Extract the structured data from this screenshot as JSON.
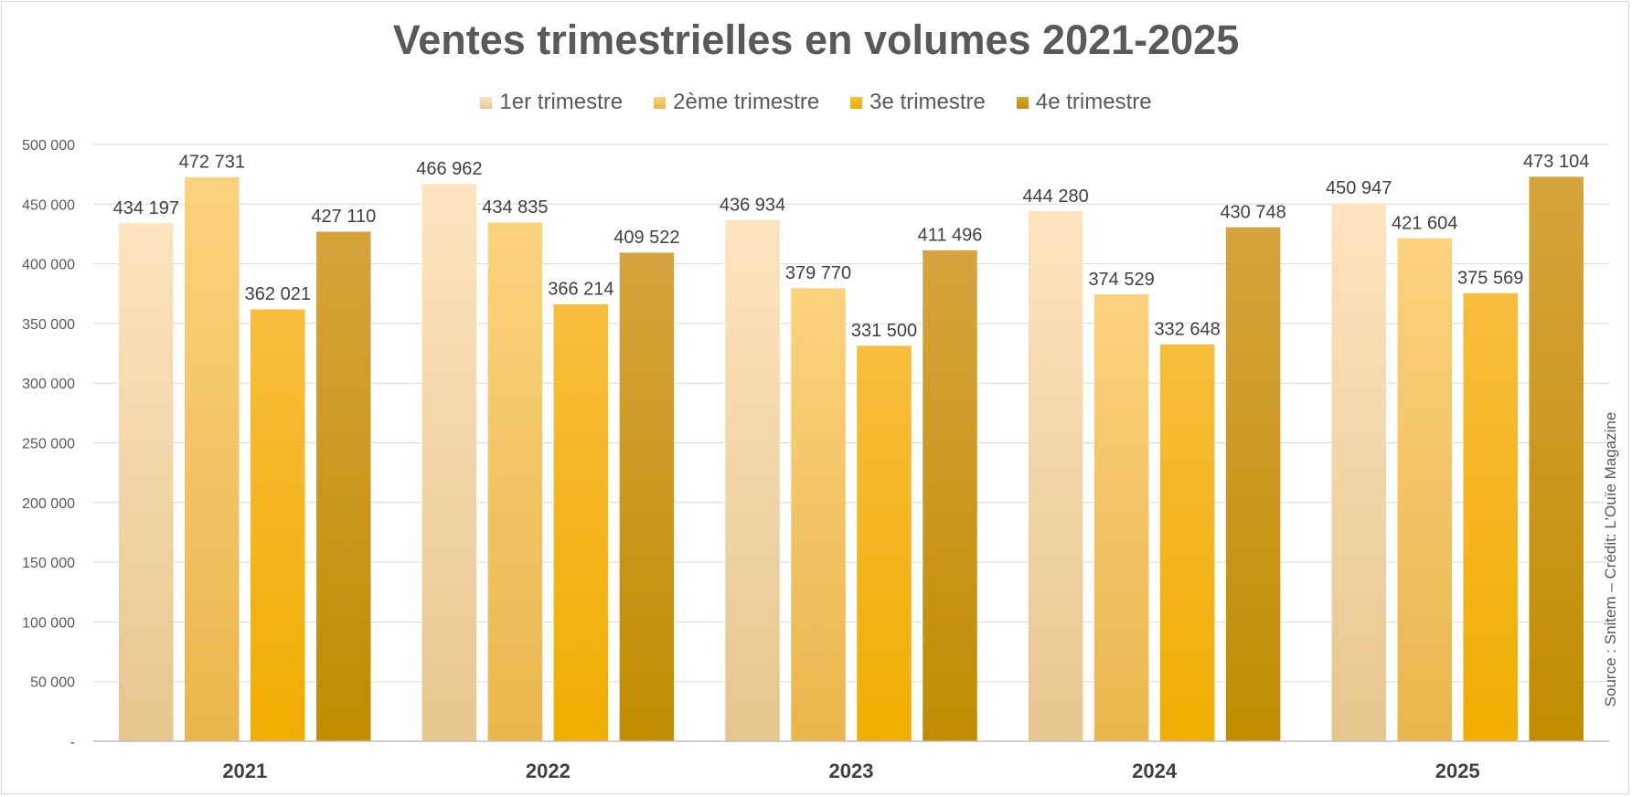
{
  "chart_data": {
    "type": "bar",
    "title": "Ventes trimestrielles en volumes 2021-2025",
    "categories": [
      "2021",
      "2022",
      "2023",
      "2024",
      "2025"
    ],
    "series": [
      {
        "name": "1er trimestre",
        "values": [
          434197,
          466962,
          436934,
          444280,
          450947
        ],
        "labels": [
          "434 197",
          "466 962",
          "436 934",
          "444 280",
          "450 947"
        ],
        "color_top": "#fde4bf",
        "color_bottom": "#e7c58e"
      },
      {
        "name": "2ème trimestre",
        "values": [
          472731,
          434835,
          379770,
          374529,
          421604
        ],
        "labels": [
          "472 731",
          "434 835",
          "379 770",
          "374 529",
          "421 604"
        ],
        "color_top": "#fdd27e",
        "color_bottom": "#e8b64c"
      },
      {
        "name": "3e trimestre",
        "values": [
          362021,
          366214,
          331500,
          332648,
          375569
        ],
        "labels": [
          "362 021",
          "366 214",
          "331 500",
          "332 648",
          "375 569"
        ],
        "color_top": "#f8bd3d",
        "color_bottom": "#f1ad00"
      },
      {
        "name": "4e trimestre",
        "values": [
          427110,
          409522,
          411496,
          430748,
          473104
        ],
        "labels": [
          "427 110",
          "409 522",
          "411 496",
          "430 748",
          "473 104"
        ],
        "color_top": "#d6a43e",
        "color_bottom": "#c08c00"
      }
    ],
    "ylim": [
      0,
      500000
    ],
    "yticks": [
      0,
      50000,
      100000,
      150000,
      200000,
      250000,
      300000,
      350000,
      400000,
      450000,
      500000
    ],
    "ytick_labels": [
      "-",
      "50 000",
      "100 000",
      "150 000",
      "200 000",
      "250 000",
      "300 000",
      "350 000",
      "400 000",
      "450 000",
      "500 000"
    ],
    "grid": true,
    "legend_position": "top",
    "xlabel": "",
    "ylabel": "",
    "source_note": "Source : Snitem – Crédit: L'Ouïe Magazine"
  }
}
